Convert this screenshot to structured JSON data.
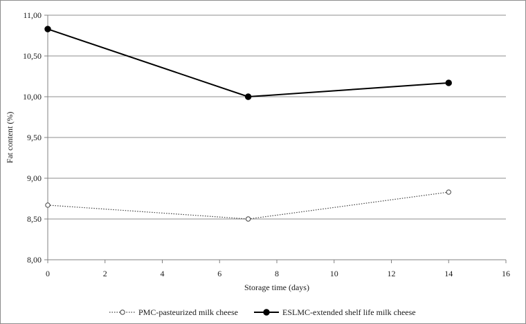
{
  "chart_data": {
    "type": "line",
    "title": "",
    "xlabel": "Storage time (days)",
    "ylabel": "Fat content (%)",
    "xlim": [
      0,
      16
    ],
    "ylim": [
      8.0,
      11.0
    ],
    "x_ticks": [
      0,
      2,
      4,
      6,
      8,
      10,
      12,
      14,
      16
    ],
    "y_ticks": [
      8.0,
      8.5,
      9.0,
      9.5,
      10.0,
      10.5,
      11.0
    ],
    "x_tick_labels": [
      "0",
      "2",
      "4",
      "6",
      "8",
      "10",
      "12",
      "14",
      "16"
    ],
    "y_tick_labels": [
      "8,00",
      "8,50",
      "9,00",
      "9,50",
      "10,00",
      "10,50",
      "11,00"
    ],
    "grid": "horizontal",
    "legend_position": "bottom",
    "series": [
      {
        "name": "PMC-pasteurized milk cheese",
        "x": [
          0,
          7,
          14
        ],
        "y": [
          8.67,
          8.5,
          8.83
        ],
        "line_style": "dotted",
        "marker": "open-circle",
        "color": "#404040"
      },
      {
        "name": "ESLMC-extended shelf life milk cheese",
        "x": [
          0,
          7,
          14
        ],
        "y": [
          10.83,
          10.0,
          10.17
        ],
        "line_style": "solid",
        "marker": "filled-circle",
        "color": "#000000"
      }
    ]
  }
}
